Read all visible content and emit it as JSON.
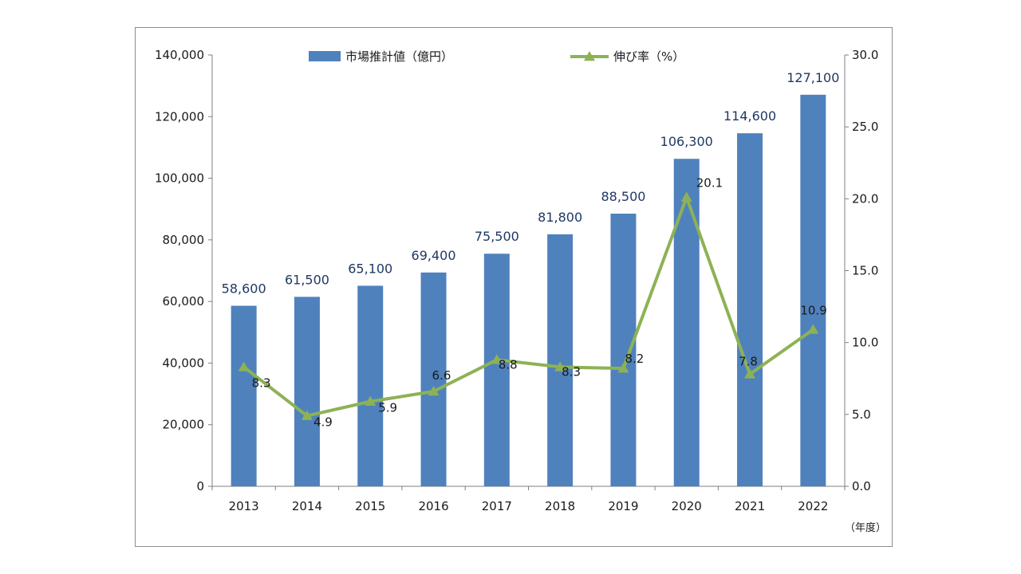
{
  "chart_data": {
    "type": "bar",
    "categories": [
      "2013",
      "2014",
      "2015",
      "2016",
      "2017",
      "2018",
      "2019",
      "2020",
      "2021",
      "2022"
    ],
    "series": [
      {
        "name": "市場推計値（億円）",
        "type": "bar",
        "axis": "left",
        "color": "#4f81bd",
        "values": [
          58600,
          61500,
          65100,
          69400,
          75500,
          81800,
          88500,
          106300,
          114600,
          127100
        ],
        "labels": [
          "58,600",
          "61,500",
          "65,100",
          "69,400",
          "75,500",
          "81,800",
          "88,500",
          "106,300",
          "114,600",
          "127,100"
        ]
      },
      {
        "name": "伸び率（%）",
        "type": "line",
        "axis": "right",
        "color": "#8db255",
        "marker": "triangle",
        "values": [
          8.3,
          4.9,
          5.9,
          6.6,
          8.8,
          8.3,
          8.2,
          20.1,
          7.8,
          10.9
        ],
        "labels": [
          "8.3",
          "4.9",
          "5.9",
          "6.6",
          "8.8",
          "8.3",
          "8.2",
          "20.1",
          "7.8",
          "10.9"
        ]
      }
    ],
    "y_left": {
      "range": [
        0,
        140000
      ],
      "ticks": [
        0,
        20000,
        40000,
        60000,
        80000,
        100000,
        120000,
        140000
      ],
      "tick_labels": [
        "0",
        "20,000",
        "40,000",
        "60,000",
        "80,000",
        "100,000",
        "120,000",
        "140,000"
      ]
    },
    "y_right": {
      "range": [
        0,
        30
      ],
      "ticks": [
        0,
        5,
        10,
        15,
        20,
        25,
        30
      ],
      "tick_labels": [
        "0.0",
        "5.0",
        "10.0",
        "15.0",
        "20.0",
        "25.0",
        "30.0"
      ]
    },
    "x_unit_label": "（年度）",
    "legend_position": "top-center",
    "grid": false
  }
}
